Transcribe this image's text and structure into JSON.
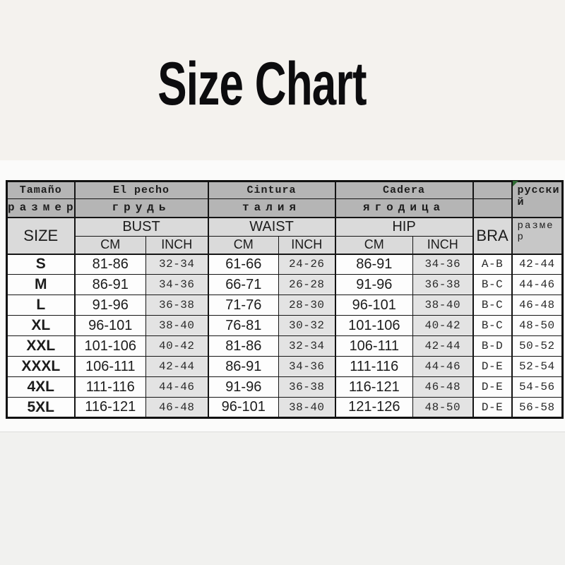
{
  "page": {
    "title": "Size Chart"
  },
  "colors": {
    "header_dark_gray": "#b5b5b5",
    "header_light_gray": "#dadada",
    "inch_cell_gray": "#e3e3e3",
    "border_black": "#151515",
    "excel_marker_green": "#2e6b33"
  },
  "table": {
    "header": {
      "es": {
        "size": "Tamaño",
        "bust": "El pecho",
        "waist": "Cintura",
        "hip": "Cadera"
      },
      "ru": {
        "size": "размер",
        "bust": "грудь",
        "waist": "талия",
        "hip": "ягодица",
        "lang_label": "русский",
        "size_label": "размер"
      },
      "en": {
        "size": "SIZE",
        "bust": "BUST",
        "waist": "WAIST",
        "hip": "HIP",
        "bra": "BRA"
      },
      "units": {
        "cm": "CM",
        "inch": "INCH"
      }
    },
    "columns": [
      "size",
      "bust_cm",
      "bust_inch",
      "waist_cm",
      "waist_inch",
      "hip_cm",
      "hip_inch",
      "bra",
      "ru"
    ],
    "rows": [
      {
        "size": "S",
        "bust_cm": "81-86",
        "bust_inch": "32-34",
        "waist_cm": "61-66",
        "waist_inch": "24-26",
        "hip_cm": "86-91",
        "hip_inch": "34-36",
        "bra": "A-B",
        "ru": "42-44"
      },
      {
        "size": "M",
        "bust_cm": "86-91",
        "bust_inch": "34-36",
        "waist_cm": "66-71",
        "waist_inch": "26-28",
        "hip_cm": "91-96",
        "hip_inch": "36-38",
        "bra": "B-C",
        "ru": "44-46"
      },
      {
        "size": "L",
        "bust_cm": "91-96",
        "bust_inch": "36-38",
        "waist_cm": "71-76",
        "waist_inch": "28-30",
        "hip_cm": "96-101",
        "hip_inch": "38-40",
        "bra": "B-C",
        "ru": "46-48"
      },
      {
        "size": "XL",
        "bust_cm": "96-101",
        "bust_inch": "38-40",
        "waist_cm": "76-81",
        "waist_inch": "30-32",
        "hip_cm": "101-106",
        "hip_inch": "40-42",
        "bra": "B-C",
        "ru": "48-50"
      },
      {
        "size": "XXL",
        "bust_cm": "101-106",
        "bust_inch": "40-42",
        "waist_cm": "81-86",
        "waist_inch": "32-34",
        "hip_cm": "106-111",
        "hip_inch": "42-44",
        "bra": "B-D",
        "ru": "50-52"
      },
      {
        "size": "XXXL",
        "bust_cm": "106-111",
        "bust_inch": "42-44",
        "waist_cm": "86-91",
        "waist_inch": "34-36",
        "hip_cm": "111-116",
        "hip_inch": "44-46",
        "bra": "D-E",
        "ru": "52-54"
      },
      {
        "size": "4XL",
        "bust_cm": "111-116",
        "bust_inch": "44-46",
        "waist_cm": "91-96",
        "waist_inch": "36-38",
        "hip_cm": "116-121",
        "hip_inch": "46-48",
        "bra": "D-E",
        "ru": "54-56"
      },
      {
        "size": "5XL",
        "bust_cm": "116-121",
        "bust_inch": "46-48",
        "waist_cm": "96-101",
        "waist_inch": "38-40",
        "hip_cm": "121-126",
        "hip_inch": "48-50",
        "bra": "D-E",
        "ru": "56-58"
      }
    ]
  }
}
